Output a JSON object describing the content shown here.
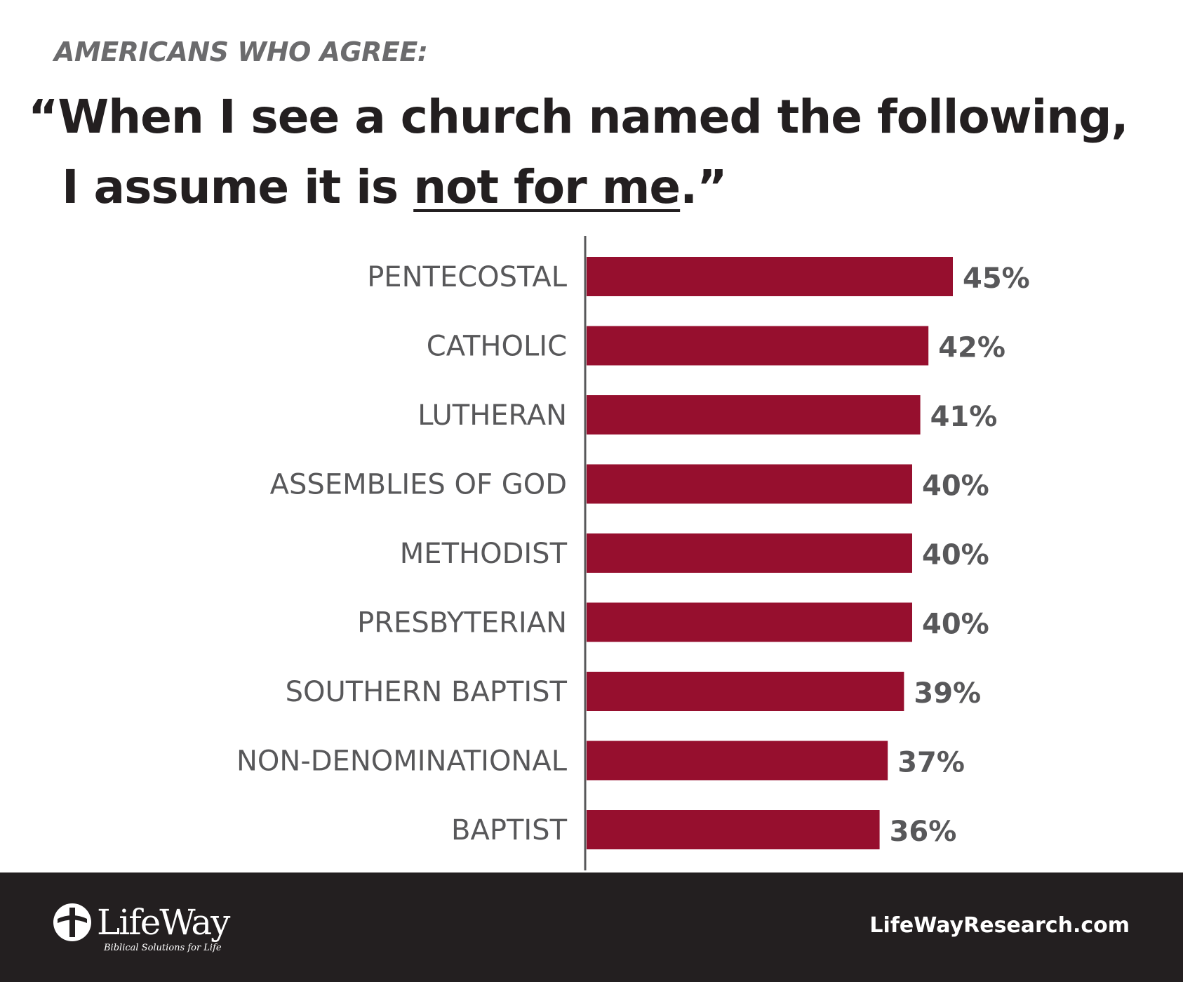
{
  "header": {
    "kicker": "AMERICANS WHO AGREE:",
    "line1": "“When I see a church named the following,",
    "line2_prefix": "I assume it is ",
    "line2_emphasis": "not for me",
    "line2_suffix": ".”"
  },
  "chart_data": {
    "type": "bar",
    "orientation": "horizontal",
    "categories": [
      "PENTECOSTAL",
      "CATHOLIC",
      "LUTHERAN",
      "ASSEMBLIES OF GOD",
      "METHODIST",
      "PRESBYTERIAN",
      "SOUTHERN BAPTIST",
      "NON-DENOMINATIONAL",
      "BAPTIST"
    ],
    "values": [
      45,
      42,
      41,
      40,
      40,
      40,
      39,
      37,
      36
    ],
    "value_labels": [
      "45%",
      "42%",
      "41%",
      "40%",
      "40%",
      "40%",
      "39%",
      "37%",
      "36%"
    ],
    "bar_color": "#960f2e",
    "grid": false,
    "legend": "none"
  },
  "footer": {
    "logo_text": "LifeWay",
    "logo_tagline": "Biblical Solutions for Life",
    "url": "LifeWayResearch.com"
  },
  "colors": {
    "bar": "#960f2e",
    "label": "#58585a",
    "footer": "#231f20"
  }
}
